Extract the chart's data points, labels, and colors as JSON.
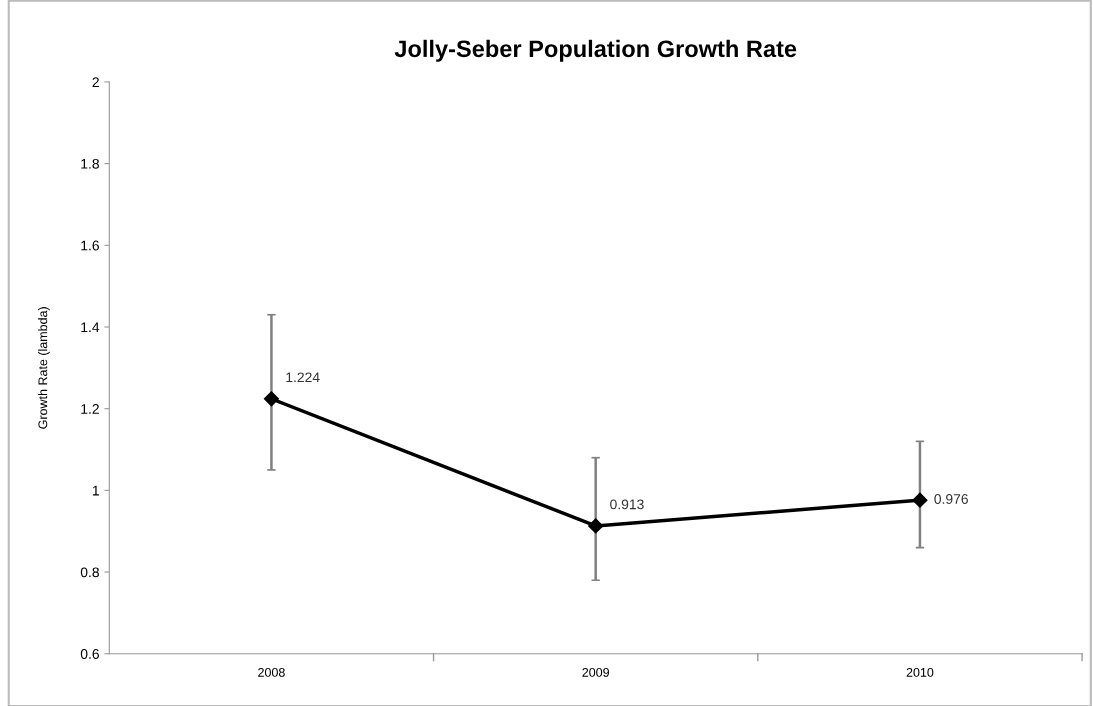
{
  "chart_data": {
    "type": "line",
    "title": "Jolly-Seber Population Growth Rate",
    "ylabel": "Growth Rate (lambda)",
    "categories": [
      "2008",
      "2009",
      "2010"
    ],
    "series": [
      {
        "color": "#000000",
        "values": [
          1.224,
          0.913,
          0.976
        ],
        "errors": [
          [
            1.05,
            1.43
          ],
          [
            0.78,
            1.08
          ],
          [
            0.86,
            1.12
          ]
        ]
      }
    ],
    "data_labels": true,
    "marker": "diamond",
    "line_style": "solid",
    "ylim": [
      0.6,
      2
    ],
    "yticks": [
      0.6,
      0.8,
      1,
      1.2,
      1.4,
      1.6,
      1.8,
      2
    ],
    "grid": false,
    "legend": false
  }
}
